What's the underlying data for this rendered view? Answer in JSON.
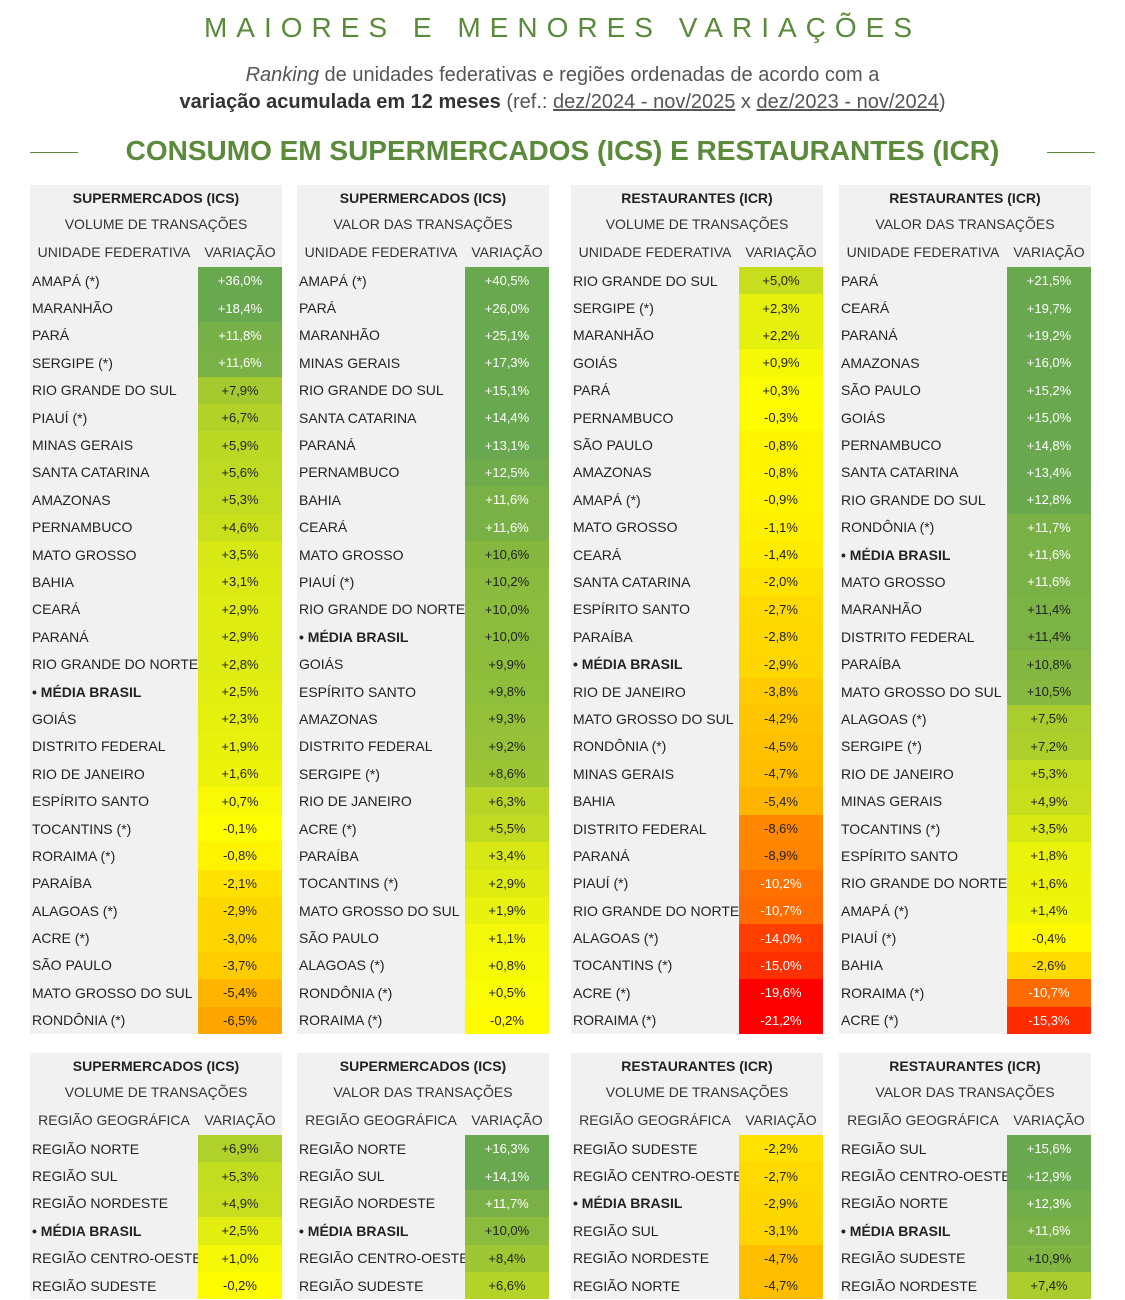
{
  "header": {
    "title": "MAIORES E MENORES VARIAÇÕES",
    "subtitle_italic": "Ranking",
    "subtitle_line1_rest": " de unidades federativas e regiões ordenadas de acordo com a",
    "subtitle_bold": "variação acumulada em 12 meses",
    "subtitle_ref_open": " (ref.: ",
    "subtitle_period_current": "dez/2024 - nov/2025",
    "subtitle_x": " x ",
    "subtitle_period_previous": "dez/2023 - nov/2024",
    "subtitle_ref_close": ")",
    "section_title": "CONSUMO EM SUPERMERCADOS (ICS) E RESTAURANTES (ICR)"
  },
  "colors": {
    "title_green": "#5a8a3a",
    "scale_high": "#6aa84f",
    "scale_mid": "#ffff00",
    "scale_low": "#ff0000",
    "panel_bg": "#f1f1f1"
  },
  "chart_data": [
    {
      "type": "table",
      "title": "SUPERMERCADOS (ICS)",
      "subtitle": "VOLUME DE TRANSAÇÕES",
      "col_label": "UNIDADE FEDERATIVA",
      "col_value": "VARIAÇÃO",
      "rows": [
        {
          "name": "AMAPÁ (*)",
          "label": "+36,0%",
          "value": 36.0
        },
        {
          "name": "MARANHÃO",
          "label": "+18,4%",
          "value": 18.4
        },
        {
          "name": "PARÁ",
          "label": "+11,8%",
          "value": 11.8
        },
        {
          "name": "SERGIPE (*)",
          "label": "+11,6%",
          "value": 11.6
        },
        {
          "name": "RIO GRANDE DO SUL",
          "label": "+7,9%",
          "value": 7.9
        },
        {
          "name": "PIAUÍ (*)",
          "label": "+6,7%",
          "value": 6.7
        },
        {
          "name": "MINAS GERAIS",
          "label": "+5,9%",
          "value": 5.9
        },
        {
          "name": "SANTA CATARINA",
          "label": "+5,6%",
          "value": 5.6
        },
        {
          "name": "AMAZONAS",
          "label": "+5,3%",
          "value": 5.3
        },
        {
          "name": "PERNAMBUCO",
          "label": "+4,6%",
          "value": 4.6
        },
        {
          "name": "MATO GROSSO",
          "label": "+3,5%",
          "value": 3.5
        },
        {
          "name": "BAHIA",
          "label": "+3,1%",
          "value": 3.1
        },
        {
          "name": "CEARÁ",
          "label": "+2,9%",
          "value": 2.9
        },
        {
          "name": "PARANÁ",
          "label": "+2,9%",
          "value": 2.9
        },
        {
          "name": "RIO GRANDE DO NORTE",
          "label": "+2,8%",
          "value": 2.8
        },
        {
          "name": "• MÉDIA BRASIL",
          "label": "+2,5%",
          "value": 2.5,
          "avg": true
        },
        {
          "name": "GOIÁS",
          "label": "+2,3%",
          "value": 2.3
        },
        {
          "name": "DISTRITO FEDERAL",
          "label": "+1,9%",
          "value": 1.9
        },
        {
          "name": "RIO DE JANEIRO",
          "label": "+1,6%",
          "value": 1.6
        },
        {
          "name": "ESPÍRITO SANTO",
          "label": "+0,7%",
          "value": 0.7
        },
        {
          "name": "TOCANTINS (*)",
          "label": "-0,1%",
          "value": -0.1
        },
        {
          "name": "RORAIMA (*)",
          "label": "-0,8%",
          "value": -0.8
        },
        {
          "name": "PARAÍBA",
          "label": "-2,1%",
          "value": -2.1
        },
        {
          "name": "ALAGOAS (*)",
          "label": "-2,9%",
          "value": -2.9
        },
        {
          "name": "ACRE (*)",
          "label": "-3,0%",
          "value": -3.0
        },
        {
          "name": "SÃO PAULO",
          "label": "-3,7%",
          "value": -3.7
        },
        {
          "name": "MATO GROSSO DO SUL",
          "label": "-5,4%",
          "value": -5.4
        },
        {
          "name": "RONDÔNIA (*)",
          "label": "-6,5%",
          "value": -6.5
        }
      ]
    },
    {
      "type": "table",
      "title": "SUPERMERCADOS (ICS)",
      "subtitle": "VALOR DAS TRANSAÇÕES",
      "col_label": "UNIDADE FEDERATIVA",
      "col_value": "VARIAÇÃO",
      "rows": [
        {
          "name": "AMAPÁ (*)",
          "label": "+40,5%",
          "value": 40.5
        },
        {
          "name": "PARÁ",
          "label": "+26,0%",
          "value": 26.0
        },
        {
          "name": "MARANHÃO",
          "label": "+25,1%",
          "value": 25.1
        },
        {
          "name": "MINAS GERAIS",
          "label": "+17,3%",
          "value": 17.3
        },
        {
          "name": "RIO GRANDE DO SUL",
          "label": "+15,1%",
          "value": 15.1
        },
        {
          "name": "SANTA CATARINA",
          "label": "+14,4%",
          "value": 14.4
        },
        {
          "name": "PARANÁ",
          "label": "+13,1%",
          "value": 13.1
        },
        {
          "name": "PERNAMBUCO",
          "label": "+12,5%",
          "value": 12.5
        },
        {
          "name": "BAHIA",
          "label": "+11,6%",
          "value": 11.6
        },
        {
          "name": "CEARÁ",
          "label": "+11,6%",
          "value": 11.6
        },
        {
          "name": "MATO GROSSO",
          "label": "+10,6%",
          "value": 10.6
        },
        {
          "name": "PIAUÍ (*)",
          "label": "+10,2%",
          "value": 10.2
        },
        {
          "name": "RIO GRANDE DO NORTE",
          "label": "+10,0%",
          "value": 10.0
        },
        {
          "name": "• MÉDIA BRASIL",
          "label": "+10,0%",
          "value": 10.0,
          "avg": true
        },
        {
          "name": "GOIÁS",
          "label": "+9,9%",
          "value": 9.9
        },
        {
          "name": "ESPÍRITO SANTO",
          "label": "+9,8%",
          "value": 9.8
        },
        {
          "name": "AMAZONAS",
          "label": "+9,3%",
          "value": 9.3
        },
        {
          "name": "DISTRITO FEDERAL",
          "label": "+9,2%",
          "value": 9.2
        },
        {
          "name": "SERGIPE (*)",
          "label": "+8,6%",
          "value": 8.6
        },
        {
          "name": "RIO DE JANEIRO",
          "label": "+6,3%",
          "value": 6.3
        },
        {
          "name": "ACRE (*)",
          "label": "+5,5%",
          "value": 5.5
        },
        {
          "name": "PARAÍBA",
          "label": "+3,4%",
          "value": 3.4
        },
        {
          "name": "TOCANTINS (*)",
          "label": "+2,9%",
          "value": 2.9
        },
        {
          "name": "MATO GROSSO DO SUL",
          "label": "+1,9%",
          "value": 1.9
        },
        {
          "name": "SÃO PAULO",
          "label": "+1,1%",
          "value": 1.1
        },
        {
          "name": "ALAGOAS (*)",
          "label": "+0,8%",
          "value": 0.8
        },
        {
          "name": "RONDÔNIA (*)",
          "label": "+0,5%",
          "value": 0.5
        },
        {
          "name": "RORAIMA (*)",
          "label": "-0,2%",
          "value": -0.2
        }
      ]
    },
    {
      "type": "table",
      "title": "RESTAURANTES (ICR)",
      "subtitle": "VOLUME DE TRANSAÇÕES",
      "col_label": "UNIDADE FEDERATIVA",
      "col_value": "VARIAÇÃO",
      "rows": [
        {
          "name": "RIO GRANDE DO SUL",
          "label": "+5,0%",
          "value": 5.0
        },
        {
          "name": "SERGIPE (*)",
          "label": "+2,3%",
          "value": 2.3
        },
        {
          "name": "MARANHÃO",
          "label": "+2,2%",
          "value": 2.2
        },
        {
          "name": "GOIÁS",
          "label": "+0,9%",
          "value": 0.9
        },
        {
          "name": "PARÁ",
          "label": "+0,3%",
          "value": 0.3
        },
        {
          "name": "PERNAMBUCO",
          "label": "-0,3%",
          "value": -0.3
        },
        {
          "name": "SÃO PAULO",
          "label": "-0,8%",
          "value": -0.8
        },
        {
          "name": "AMAZONAS",
          "label": "-0,8%",
          "value": -0.8
        },
        {
          "name": "AMAPÁ (*)",
          "label": "-0,9%",
          "value": -0.9
        },
        {
          "name": "MATO GROSSO",
          "label": "-1,1%",
          "value": -1.1
        },
        {
          "name": "CEARÁ",
          "label": "-1,4%",
          "value": -1.4
        },
        {
          "name": "SANTA CATARINA",
          "label": "-2,0%",
          "value": -2.0
        },
        {
          "name": "ESPÍRITO SANTO",
          "label": "-2,7%",
          "value": -2.7
        },
        {
          "name": "PARAÍBA",
          "label": "-2,8%",
          "value": -2.8
        },
        {
          "name": "• MÉDIA BRASIL",
          "label": "-2,9%",
          "value": -2.9,
          "avg": true
        },
        {
          "name": "RIO DE JANEIRO",
          "label": "-3,8%",
          "value": -3.8
        },
        {
          "name": "MATO GROSSO DO SUL",
          "label": "-4,2%",
          "value": -4.2
        },
        {
          "name": "RONDÔNIA (*)",
          "label": "-4,5%",
          "value": -4.5
        },
        {
          "name": "MINAS GERAIS",
          "label": "-4,7%",
          "value": -4.7
        },
        {
          "name": "BAHIA",
          "label": "-5,4%",
          "value": -5.4
        },
        {
          "name": "DISTRITO FEDERAL",
          "label": "-8,6%",
          "value": -8.6
        },
        {
          "name": "PARANÁ",
          "label": "-8,9%",
          "value": -8.9
        },
        {
          "name": "PIAUÍ (*)",
          "label": "-10,2%",
          "value": -10.2
        },
        {
          "name": "RIO GRANDE DO NORTE",
          "label": "-10,7%",
          "value": -10.7
        },
        {
          "name": "ALAGOAS (*)",
          "label": "-14,0%",
          "value": -14.0
        },
        {
          "name": "TOCANTINS (*)",
          "label": "-15,0%",
          "value": -15.0
        },
        {
          "name": "ACRE (*)",
          "label": "-19,6%",
          "value": -19.6
        },
        {
          "name": "RORAIMA (*)",
          "label": "-21,2%",
          "value": -21.2
        }
      ]
    },
    {
      "type": "table",
      "title": "RESTAURANTES (ICR)",
      "subtitle": "VALOR DAS TRANSAÇÕES",
      "col_label": "UNIDADE FEDERATIVA",
      "col_value": "VARIAÇÃO",
      "rows": [
        {
          "name": "PARÁ",
          "label": "+21,5%",
          "value": 21.5
        },
        {
          "name": "CEARÁ",
          "label": "+19,7%",
          "value": 19.7
        },
        {
          "name": "PARANÁ",
          "label": "+19,2%",
          "value": 19.2
        },
        {
          "name": "AMAZONAS",
          "label": "+16,0%",
          "value": 16.0
        },
        {
          "name": "SÃO PAULO",
          "label": "+15,2%",
          "value": 15.2
        },
        {
          "name": "GOIÁS",
          "label": "+15,0%",
          "value": 15.0
        },
        {
          "name": "PERNAMBUCO",
          "label": "+14,8%",
          "value": 14.8
        },
        {
          "name": "SANTA CATARINA",
          "label": "+13,4%",
          "value": 13.4
        },
        {
          "name": "RIO GRANDE DO SUL",
          "label": "+12,8%",
          "value": 12.8
        },
        {
          "name": "RONDÔNIA (*)",
          "label": "+11,7%",
          "value": 11.7
        },
        {
          "name": "• MÉDIA BRASIL",
          "label": "+11,6%",
          "value": 11.6,
          "avg": true
        },
        {
          "name": "MATO GROSSO",
          "label": "+11,6%",
          "value": 11.6
        },
        {
          "name": "MARANHÃO",
          "label": "+11,4%",
          "value": 11.4
        },
        {
          "name": "DISTRITO FEDERAL",
          "label": "+11,4%",
          "value": 11.4
        },
        {
          "name": "PARAÍBA",
          "label": "+10,8%",
          "value": 10.8
        },
        {
          "name": "MATO GROSSO DO SUL",
          "label": "+10,5%",
          "value": 10.5
        },
        {
          "name": "ALAGOAS (*)",
          "label": "+7,5%",
          "value": 7.5
        },
        {
          "name": "SERGIPE (*)",
          "label": "+7,2%",
          "value": 7.2
        },
        {
          "name": "RIO DE JANEIRO",
          "label": "+5,3%",
          "value": 5.3
        },
        {
          "name": "MINAS GERAIS",
          "label": "+4,9%",
          "value": 4.9
        },
        {
          "name": "TOCANTINS (*)",
          "label": "+3,5%",
          "value": 3.5
        },
        {
          "name": "ESPÍRITO SANTO",
          "label": "+1,8%",
          "value": 1.8
        },
        {
          "name": "RIO GRANDE DO NORTE",
          "label": "+1,6%",
          "value": 1.6
        },
        {
          "name": "AMAPÁ (*)",
          "label": "+1,4%",
          "value": 1.4
        },
        {
          "name": "PIAUÍ (*)",
          "label": "-0,4%",
          "value": -0.4
        },
        {
          "name": "BAHIA",
          "label": "-2,6%",
          "value": -2.6
        },
        {
          "name": "RORAIMA (*)",
          "label": "-10,7%",
          "value": -10.7
        },
        {
          "name": "ACRE (*)",
          "label": "-15,3%",
          "value": -15.3
        }
      ]
    },
    {
      "type": "table",
      "title": "SUPERMERCADOS (ICS)",
      "subtitle": "VOLUME DE TRANSAÇÕES",
      "col_label": "REGIÃO GEOGRÁFICA",
      "col_value": "VARIAÇÃO",
      "rows": [
        {
          "name": "REGIÃO NORTE",
          "label": "+6,9%",
          "value": 6.9
        },
        {
          "name": "REGIÃO SUL",
          "label": "+5,3%",
          "value": 5.3
        },
        {
          "name": "REGIÃO NORDESTE",
          "label": "+4,9%",
          "value": 4.9
        },
        {
          "name": "• MÉDIA BRASIL",
          "label": "+2,5%",
          "value": 2.5,
          "avg": true
        },
        {
          "name": "REGIÃO CENTRO-OESTE",
          "label": "+1,0%",
          "value": 1.0
        },
        {
          "name": "REGIÃO SUDESTE",
          "label": "-0,2%",
          "value": -0.2
        }
      ]
    },
    {
      "type": "table",
      "title": "SUPERMERCADOS (ICS)",
      "subtitle": "VALOR DAS TRANSAÇÕES",
      "col_label": "REGIÃO GEOGRÁFICA",
      "col_value": "VARIAÇÃO",
      "rows": [
        {
          "name": "REGIÃO NORTE",
          "label": "+16,3%",
          "value": 16.3
        },
        {
          "name": "REGIÃO SUL",
          "label": "+14,1%",
          "value": 14.1
        },
        {
          "name": "REGIÃO NORDESTE",
          "label": "+11,7%",
          "value": 11.7
        },
        {
          "name": "• MÉDIA BRASIL",
          "label": "+10,0%",
          "value": 10.0,
          "avg": true
        },
        {
          "name": "REGIÃO CENTRO-OESTE",
          "label": "+8,4%",
          "value": 8.4
        },
        {
          "name": "REGIÃO SUDESTE",
          "label": "+6,6%",
          "value": 6.6
        }
      ]
    },
    {
      "type": "table",
      "title": "RESTAURANTES (ICR)",
      "subtitle": "VOLUME DE TRANSAÇÕES",
      "col_label": "REGIÃO GEOGRÁFICA",
      "col_value": "VARIAÇÃO",
      "rows": [
        {
          "name": "REGIÃO SUDESTE",
          "label": "-2,2%",
          "value": -2.2
        },
        {
          "name": "REGIÃO CENTRO-OESTE",
          "label": "-2,7%",
          "value": -2.7
        },
        {
          "name": "• MÉDIA BRASIL",
          "label": "-2,9%",
          "value": -2.9,
          "avg": true
        },
        {
          "name": "REGIÃO SUL",
          "label": "-3,1%",
          "value": -3.1
        },
        {
          "name": "REGIÃO NORDESTE",
          "label": "-4,7%",
          "value": -4.7
        },
        {
          "name": "REGIÃO NORTE",
          "label": "-4,7%",
          "value": -4.7
        }
      ]
    },
    {
      "type": "table",
      "title": "RESTAURANTES (ICR)",
      "subtitle": "VALOR DAS TRANSAÇÕES",
      "col_label": "REGIÃO GEOGRÁFICA",
      "col_value": "VARIAÇÃO",
      "rows": [
        {
          "name": "REGIÃO SUL",
          "label": "+15,6%",
          "value": 15.6
        },
        {
          "name": "REGIÃO CENTRO-OESTE",
          "label": "+12,9%",
          "value": 12.9
        },
        {
          "name": "REGIÃO NORTE",
          "label": "+12,3%",
          "value": 12.3
        },
        {
          "name": "• MÉDIA BRASIL",
          "label": "+11,6%",
          "value": 11.6,
          "avg": true
        },
        {
          "name": "REGIÃO SUDESTE",
          "label": "+10,9%",
          "value": 10.9
        },
        {
          "name": "REGIÃO NORDESTE",
          "label": "+7,4%",
          "value": 7.4
        }
      ]
    }
  ]
}
